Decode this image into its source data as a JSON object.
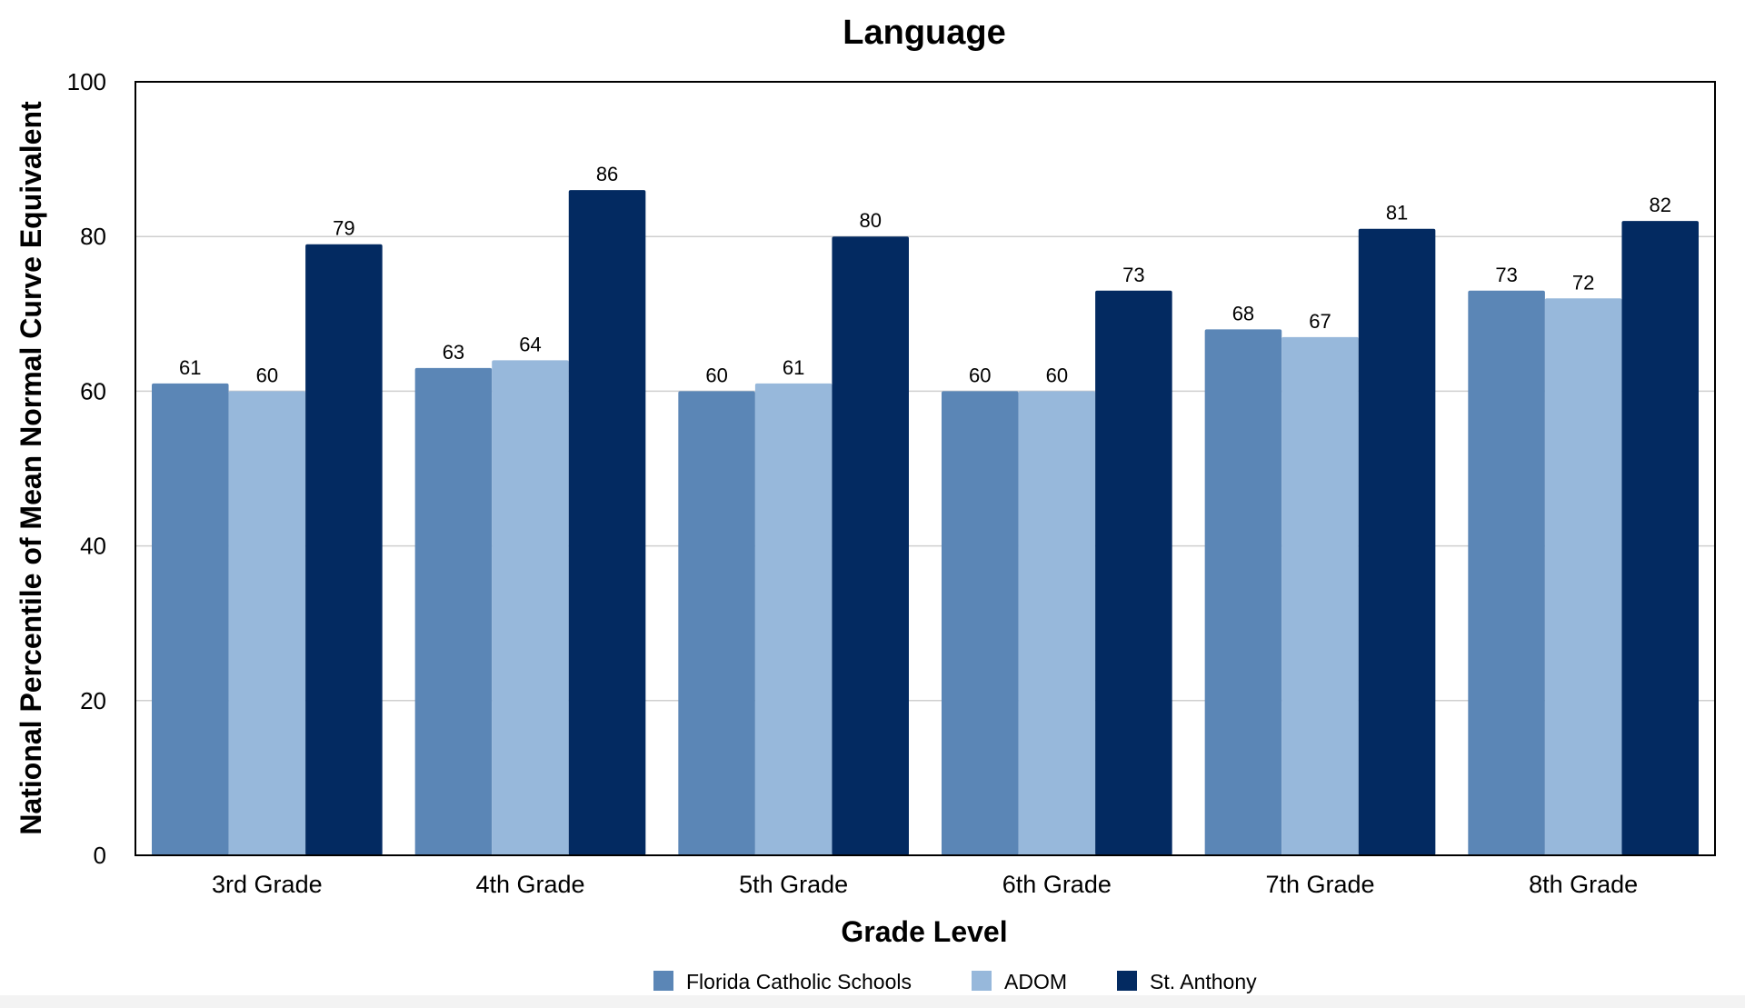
{
  "chart_data": {
    "type": "bar",
    "title": "Language",
    "xlabel": "Grade Level",
    "ylabel": "National Percentile of Mean Normal Curve Equivalent",
    "ylim": [
      0,
      100
    ],
    "yticks": [
      "0",
      "20",
      "40",
      "60",
      "80",
      "100"
    ],
    "grid": true,
    "legend_position": "bottom",
    "categories": [
      "3rd Grade",
      "4th Grade",
      "5th Grade",
      "6th Grade",
      "7th Grade",
      "8th Grade"
    ],
    "series": [
      {
        "name": "Florida Catholic Schools",
        "color": "#5b86b6",
        "values": [
          61,
          63,
          60,
          60,
          68,
          73
        ]
      },
      {
        "name": "ADOM",
        "color": "#97b8db",
        "values": [
          60,
          64,
          61,
          60,
          67,
          72
        ]
      },
      {
        "name": "St. Anthony",
        "color": "#032a61",
        "values": [
          79,
          86,
          80,
          73,
          81,
          82
        ]
      }
    ]
  }
}
